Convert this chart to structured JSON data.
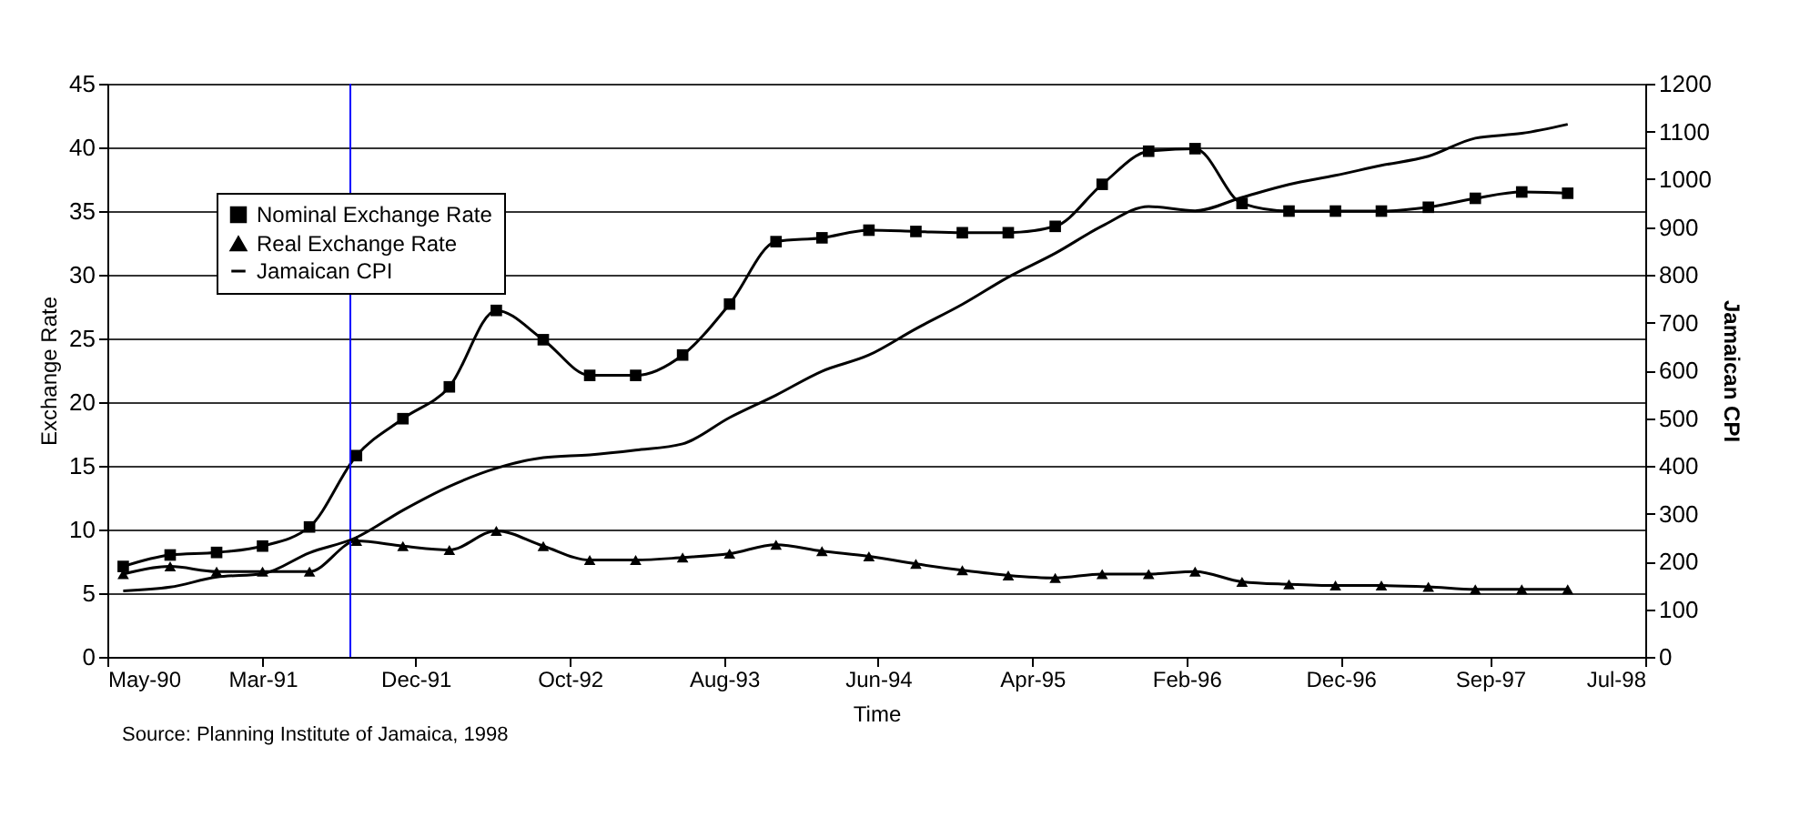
{
  "chart_data": {
    "type": "line",
    "xlabel": "Time",
    "ylabel": "Exchange Rate",
    "y2label": "Jamaican CPI",
    "x": [
      "1990-06-01",
      "1990-09-01",
      "1990-12-01",
      "1991-03-01",
      "1991-06-01",
      "1991-09-01",
      "1991-12-01",
      "1992-03-01",
      "1992-06-01",
      "1992-09-01",
      "1992-12-01",
      "1993-03-01",
      "1993-06-01",
      "1993-09-01",
      "1993-12-01",
      "1994-03-01",
      "1994-06-01",
      "1994-09-01",
      "1994-12-01",
      "1995-03-01",
      "1995-06-01",
      "1995-09-01",
      "1995-12-01",
      "1996-03-01",
      "1996-06-01",
      "1996-09-01",
      "1996-12-01",
      "1997-03-01",
      "1997-06-01",
      "1997-09-01",
      "1997-12-01",
      "1998-03-01"
    ],
    "series": [
      {
        "name": "Nominal Exchange Rate",
        "color": "#000000",
        "marker": "square",
        "values": [
          7.1,
          8.0,
          8.2,
          8.7,
          10.2,
          15.8,
          18.7,
          21.2,
          27.2,
          24.9,
          22.1,
          22.1,
          23.7,
          27.7,
          32.6,
          32.9,
          33.5,
          33.4,
          33.3,
          33.3,
          33.8,
          37.1,
          39.7,
          39.9,
          35.6,
          35.0,
          35.0,
          35.0,
          35.3,
          36.0,
          36.5,
          36.4
        ]
      },
      {
        "name": "Real Exchange Rate",
        "color": "#000000",
        "marker": "triangle",
        "values": [
          6.5,
          7.1,
          6.7,
          6.7,
          6.7,
          9.1,
          8.7,
          8.4,
          9.9,
          8.7,
          7.6,
          7.6,
          7.8,
          8.1,
          8.8,
          8.3,
          7.9,
          7.3,
          6.8,
          6.4,
          6.2,
          6.5,
          6.5,
          6.7,
          5.9,
          5.7,
          5.6,
          5.6,
          5.5,
          5.3,
          5.3,
          5.3
        ]
      },
      {
        "name": "Jamaican CPI",
        "color": "#000000",
        "marker": "none",
        "axis": "y2",
        "values": [
          138,
          146,
          167,
          174,
          218,
          250,
          307,
          357,
          395,
          417,
          423,
          433,
          446,
          501,
          548,
          598,
          632,
          687,
          738,
          795,
          845,
          902,
          943,
          934,
          962,
          989,
          1008,
          1029,
          1048,
          1086,
          1096,
          1115
        ]
      }
    ],
    "xlim": [
      "1990-05-01",
      "1998-07-31"
    ],
    "xticks": [
      {
        "value": "1990-05-01",
        "label": "May-90"
      },
      {
        "value": "1991-03-01",
        "label": "Mar-91"
      },
      {
        "value": "1991-12-26",
        "label": "Dec-91"
      },
      {
        "value": "1992-10-23",
        "label": "Oct-92"
      },
      {
        "value": "1993-08-21",
        "label": "Aug-93"
      },
      {
        "value": "1994-06-19",
        "label": "Jun-94"
      },
      {
        "value": "1995-04-17",
        "label": "Apr-95"
      },
      {
        "value": "1996-02-13",
        "label": "Feb-96"
      },
      {
        "value": "1996-12-11",
        "label": "Dec-96"
      },
      {
        "value": "1997-09-30",
        "label": "Sep-97"
      },
      {
        "value": "1998-07-31",
        "label": "Jul-98"
      }
    ],
    "ylim": [
      0,
      45
    ],
    "yticks": [
      0,
      5,
      10,
      15,
      20,
      25,
      30,
      35,
      40,
      45
    ],
    "y2lim": [
      0,
      1200
    ],
    "y2ticks": [
      0,
      100,
      200,
      300,
      400,
      500,
      600,
      700,
      800,
      900,
      1000,
      1100,
      1200
    ],
    "ref_lines": [
      {
        "axis": "x",
        "value": "1991-08-20",
        "color": "#0000ff"
      }
    ],
    "grid": "y",
    "legend": "top left",
    "annotations": [
      "Source: Planning Institute of Jamaica, 1998"
    ]
  }
}
